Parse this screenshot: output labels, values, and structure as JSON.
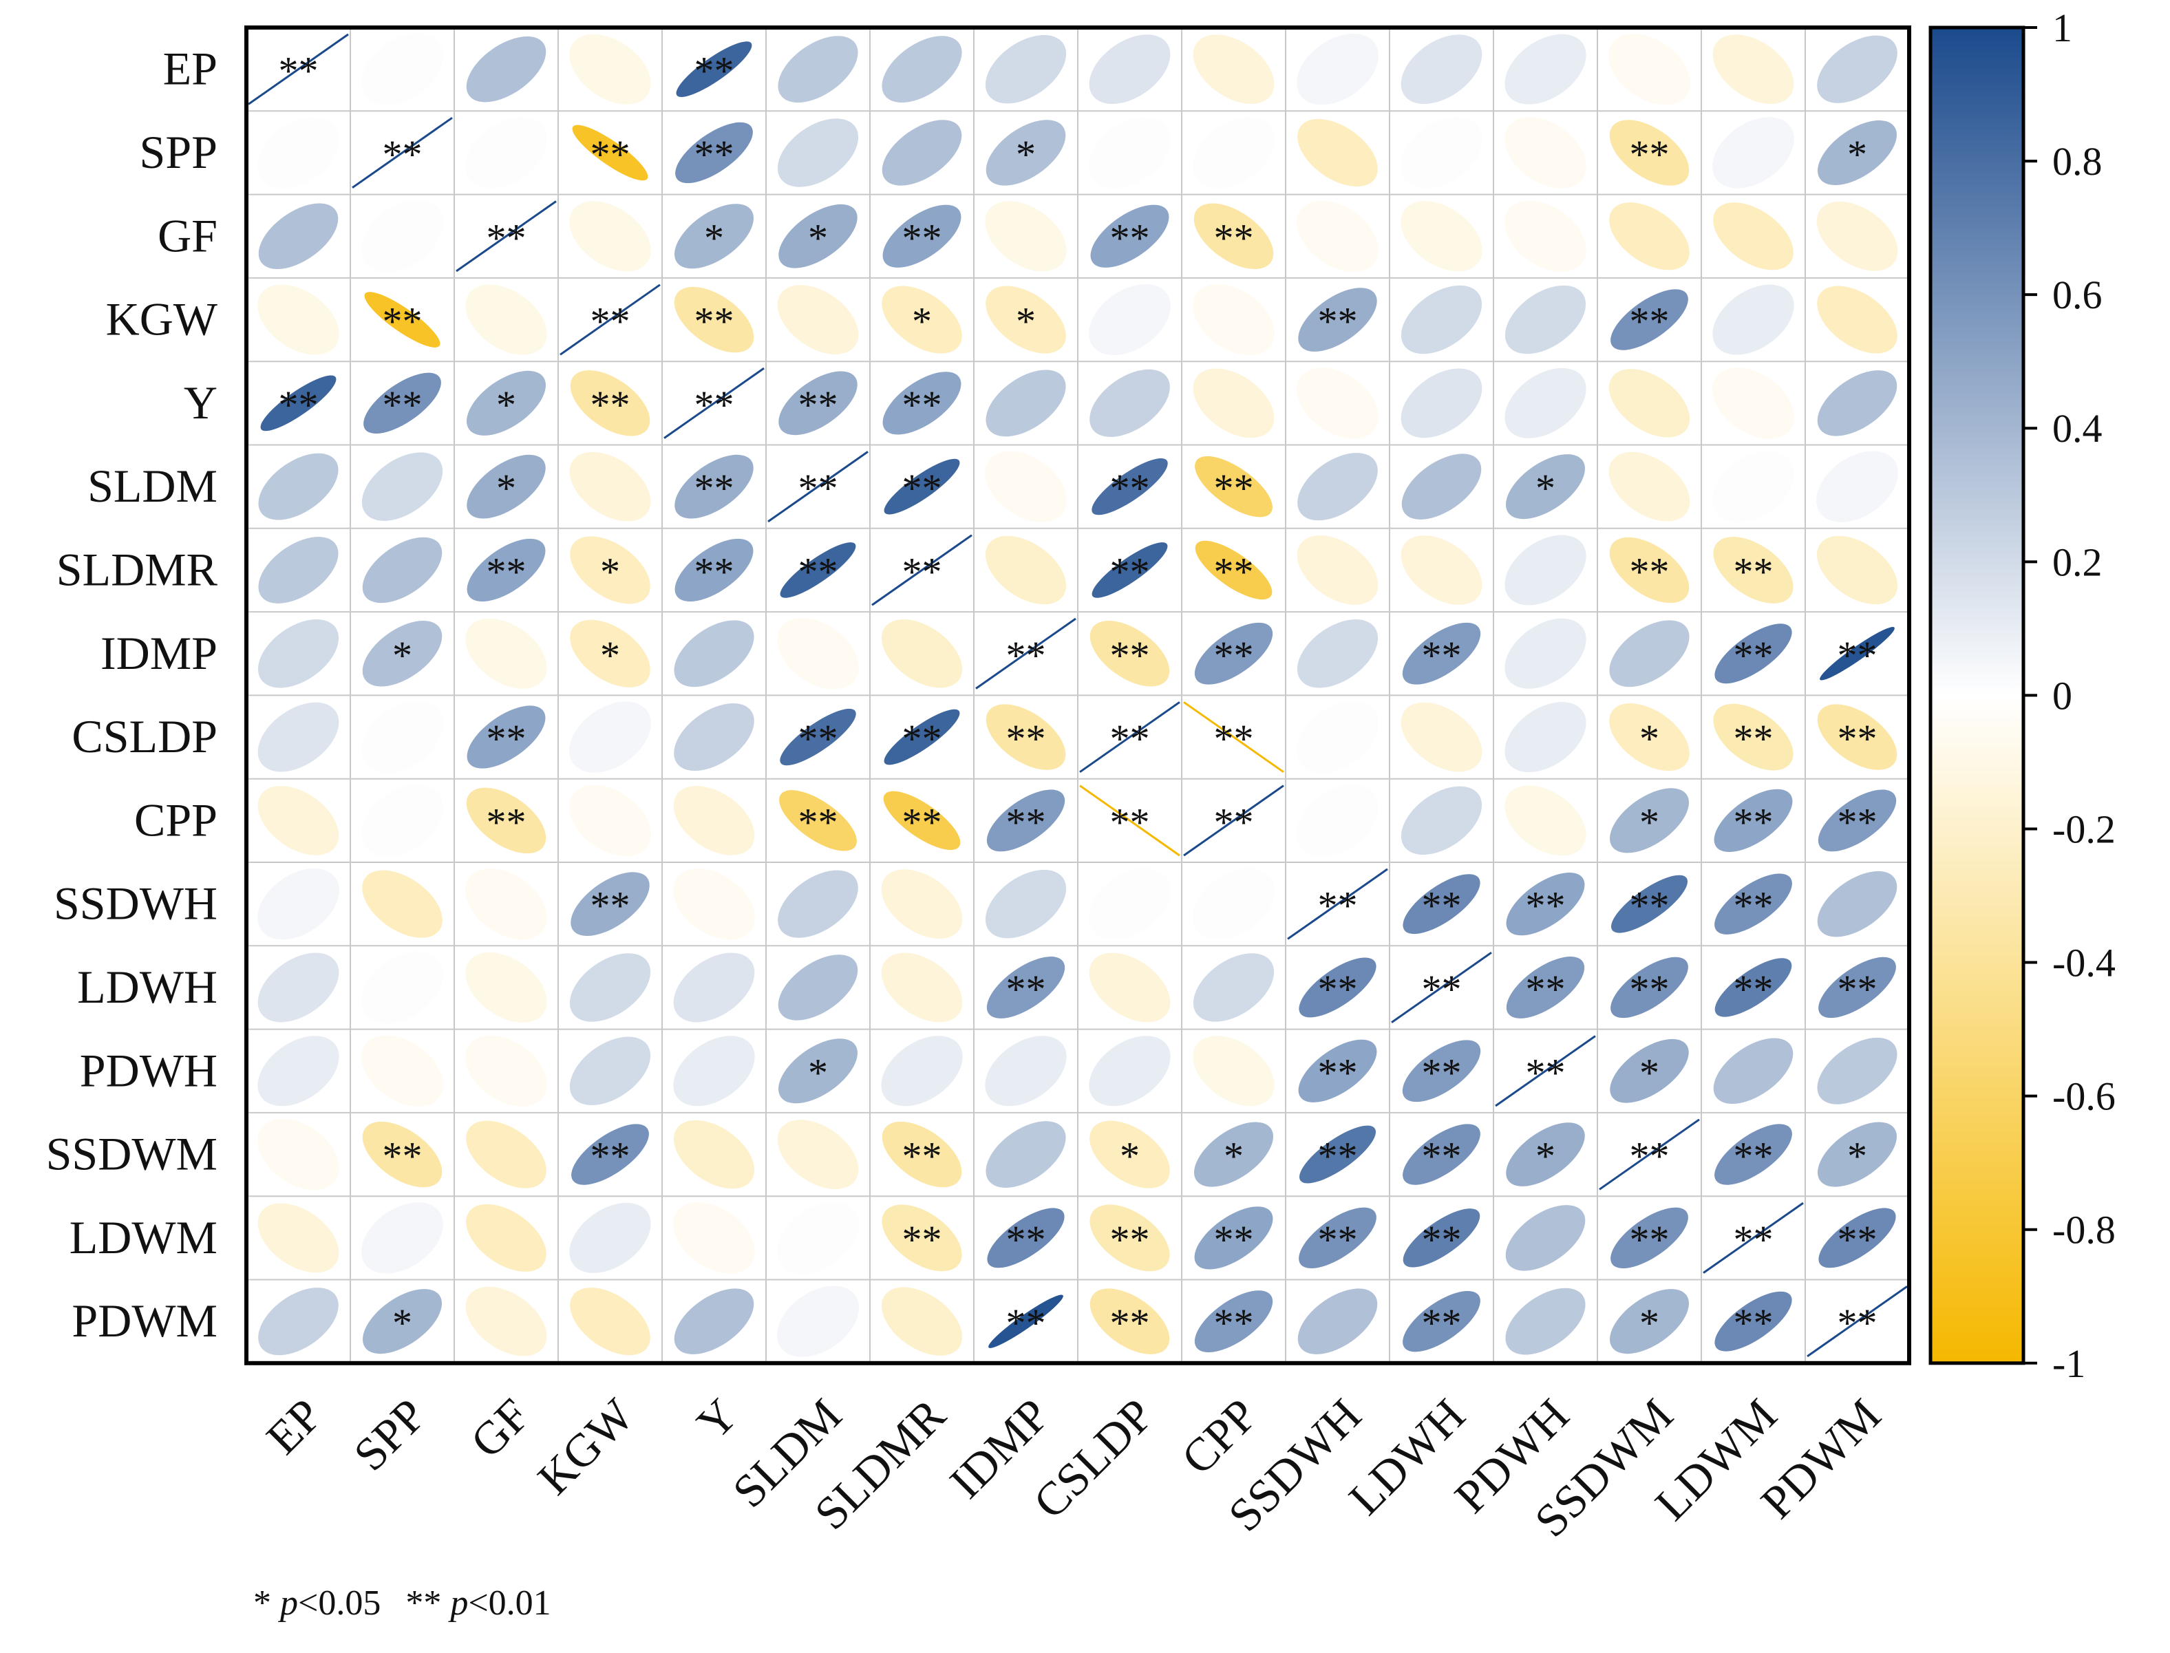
{
  "chart_data": {
    "type": "heatmap",
    "variables": [
      "EP",
      "SPP",
      "GF",
      "KGW",
      "Y",
      "SLDM",
      "SLDMR",
      "IDMP",
      "CSLDP",
      "CPP",
      "SSDWH",
      "LDWH",
      "PDWH",
      "SSDWM",
      "LDWM",
      "PDWM"
    ],
    "correlations": [
      [
        1.0,
        0.01,
        0.35,
        -0.1,
        0.85,
        0.3,
        0.3,
        0.2,
        0.15,
        -0.15,
        0.05,
        0.15,
        0.1,
        -0.05,
        -0.15,
        0.25
      ],
      [
        0.01,
        1.0,
        0.01,
        -0.85,
        0.6,
        0.2,
        0.35,
        0.35,
        0.01,
        0.01,
        -0.25,
        0.01,
        -0.05,
        -0.35,
        0.05,
        0.4
      ],
      [
        0.35,
        0.01,
        1.0,
        -0.1,
        0.4,
        0.45,
        0.5,
        -0.1,
        0.5,
        -0.35,
        -0.05,
        -0.1,
        -0.05,
        -0.25,
        -0.25,
        -0.15
      ],
      [
        -0.1,
        -0.85,
        -0.1,
        1.0,
        -0.35,
        -0.15,
        -0.25,
        -0.25,
        0.05,
        -0.05,
        0.45,
        0.2,
        0.2,
        0.6,
        0.1,
        -0.25
      ],
      [
        0.85,
        0.6,
        0.4,
        -0.35,
        1.0,
        0.45,
        0.5,
        0.3,
        0.25,
        -0.15,
        -0.05,
        0.15,
        0.1,
        -0.2,
        -0.05,
        0.35
      ],
      [
        0.3,
        0.2,
        0.45,
        -0.15,
        0.45,
        1.0,
        0.85,
        -0.05,
        0.8,
        -0.6,
        0.25,
        0.35,
        0.4,
        -0.15,
        0.01,
        0.05
      ],
      [
        0.3,
        0.35,
        0.5,
        -0.25,
        0.5,
        0.85,
        1.0,
        -0.2,
        0.85,
        -0.7,
        -0.15,
        -0.15,
        0.1,
        -0.35,
        -0.3,
        -0.2
      ],
      [
        0.2,
        0.35,
        -0.1,
        -0.25,
        0.3,
        -0.05,
        -0.2,
        1.0,
        -0.35,
        0.55,
        0.2,
        0.55,
        0.1,
        0.3,
        0.65,
        0.95
      ],
      [
        0.15,
        0.01,
        0.5,
        0.05,
        0.25,
        0.8,
        0.85,
        -0.35,
        1.0,
        -0.98,
        0.01,
        -0.15,
        0.1,
        -0.25,
        -0.3,
        -0.35
      ],
      [
        -0.15,
        0.01,
        -0.35,
        -0.05,
        -0.15,
        -0.6,
        -0.7,
        0.55,
        -0.98,
        1.0,
        0.01,
        0.2,
        -0.1,
        0.4,
        0.5,
        0.55
      ],
      [
        0.05,
        -0.25,
        -0.05,
        0.45,
        -0.05,
        0.25,
        -0.15,
        0.2,
        0.01,
        0.01,
        1.0,
        0.65,
        0.5,
        0.75,
        0.6,
        0.35
      ],
      [
        0.15,
        0.01,
        -0.1,
        0.2,
        0.15,
        0.35,
        -0.15,
        0.55,
        -0.15,
        0.2,
        0.65,
        1.0,
        0.55,
        0.6,
        0.7,
        0.6
      ],
      [
        0.1,
        -0.05,
        -0.05,
        0.2,
        0.1,
        0.4,
        0.1,
        0.1,
        0.1,
        -0.1,
        0.5,
        0.55,
        1.0,
        0.45,
        0.35,
        0.3
      ],
      [
        -0.05,
        -0.35,
        -0.25,
        0.6,
        -0.2,
        -0.15,
        -0.35,
        0.3,
        -0.25,
        0.4,
        0.75,
        0.6,
        0.45,
        1.0,
        0.6,
        0.4
      ],
      [
        -0.15,
        0.05,
        -0.25,
        0.1,
        -0.05,
        0.01,
        -0.3,
        0.65,
        -0.3,
        0.5,
        0.6,
        0.7,
        0.35,
        0.6,
        1.0,
        0.65
      ],
      [
        0.25,
        0.4,
        -0.15,
        -0.25,
        0.35,
        0.05,
        -0.2,
        0.95,
        -0.35,
        0.55,
        0.35,
        0.6,
        0.3,
        0.4,
        0.65,
        1.0
      ]
    ],
    "significance": [
      [
        "**",
        "",
        "",
        "",
        "**",
        "",
        "",
        "",
        "",
        "",
        "",
        "",
        "",
        "",
        "",
        ""
      ],
      [
        "",
        "**",
        "",
        "**",
        "**",
        "",
        "",
        "*",
        "",
        "",
        "",
        "",
        "",
        "**",
        "",
        "*"
      ],
      [
        "",
        "",
        "**",
        "",
        "*",
        "*",
        "**",
        "",
        "**",
        "**",
        "",
        "",
        "",
        "",
        "",
        ""
      ],
      [
        "",
        "**",
        "",
        "**",
        "**",
        "",
        "*",
        "*",
        "",
        "",
        "**",
        "",
        "",
        "**",
        "",
        ""
      ],
      [
        "**",
        "**",
        "*",
        "**",
        "**",
        "**",
        "**",
        "",
        "",
        "",
        "",
        "",
        "",
        "",
        "",
        ""
      ],
      [
        "",
        "",
        "*",
        "",
        "**",
        "**",
        "**",
        "",
        "**",
        "**",
        "",
        "",
        "*",
        "",
        "",
        ""
      ],
      [
        "",
        "",
        "**",
        "*",
        "**",
        "**",
        "**",
        "",
        "**",
        "**",
        "",
        "",
        "",
        "**",
        "**",
        ""
      ],
      [
        "",
        "*",
        "",
        "*",
        "",
        "",
        "",
        "**",
        "**",
        "**",
        "",
        "**",
        "",
        "",
        "**",
        "**"
      ],
      [
        "",
        "",
        "**",
        "",
        "",
        "**",
        "**",
        "**",
        "**",
        "**",
        "",
        "",
        "",
        "*",
        "**",
        "**"
      ],
      [
        "",
        "",
        "**",
        "",
        "",
        "**",
        "**",
        "**",
        "**",
        "**",
        "",
        "",
        "",
        "*",
        "**",
        "**"
      ],
      [
        "",
        "",
        "",
        "**",
        "",
        "",
        "",
        "",
        "",
        "",
        "**",
        "**",
        "**",
        "**",
        "**",
        ""
      ],
      [
        "",
        "",
        "",
        "",
        "",
        "",
        "",
        "**",
        "",
        "",
        "**",
        "**",
        "**",
        "**",
        "**",
        "**"
      ],
      [
        "",
        "",
        "",
        "",
        "",
        "*",
        "",
        "",
        "",
        "",
        "**",
        "**",
        "**",
        "*",
        "",
        ""
      ],
      [
        "",
        "**",
        "",
        "**",
        "",
        "",
        "**",
        "",
        "*",
        "*",
        "**",
        "**",
        "*",
        "**",
        "**",
        "*"
      ],
      [
        "",
        "",
        "",
        "",
        "",
        "",
        "**",
        "**",
        "**",
        "**",
        "**",
        "**",
        "",
        "**",
        "**",
        "**"
      ],
      [
        "",
        "*",
        "",
        "",
        "",
        "",
        "",
        "**",
        "**",
        "**",
        "",
        "**",
        "",
        "*",
        "**",
        "**"
      ]
    ],
    "colorbar": {
      "min": -1,
      "max": 1,
      "ticks": [
        "1",
        "0.8",
        "0.6",
        "0.4",
        "0.2",
        "0",
        "-0.2",
        "-0.4",
        "-0.6",
        "-0.8",
        "-1"
      ],
      "positive_color": "#1b4a8c",
      "neutral_color": "#ffffff",
      "negative_color": "#f5b800"
    },
    "note": {
      "p05_marker": "*",
      "p05_symbol": "p",
      "p05_rest": "<0.05",
      "p01_marker": "**",
      "p01_symbol": "p",
      "p01_rest": "<0.01"
    }
  }
}
